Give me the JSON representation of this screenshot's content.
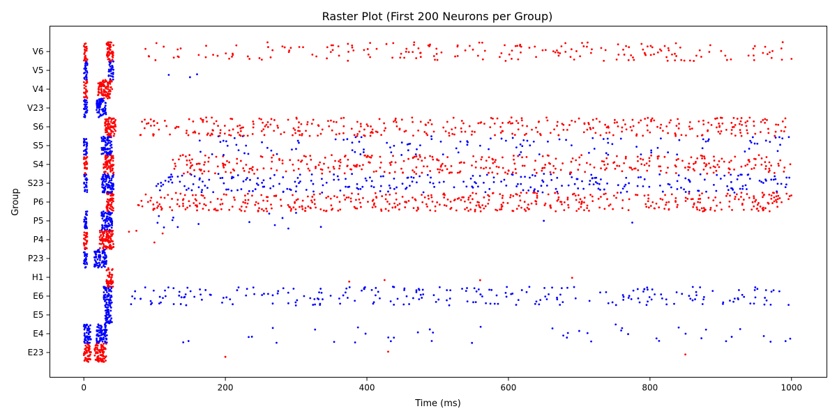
{
  "chart_data": {
    "type": "scatter",
    "title": "Raster Plot (First 200 Neurons per Group)",
    "xlabel": "Time (ms)",
    "ylabel": "Group",
    "xlim": [
      -48,
      1050
    ],
    "x_ticks": [
      0,
      200,
      400,
      600,
      800,
      1000
    ],
    "groups": [
      "E23",
      "E4",
      "E5",
      "E6",
      "H1",
      "P23",
      "P4",
      "P5",
      "P6",
      "S23",
      "S4",
      "S5",
      "S6",
      "V23",
      "V4",
      "V5",
      "V6"
    ],
    "grid": false,
    "legend": "none",
    "point_colors": {
      "red": "#ff0000",
      "blue": "#0000ff"
    },
    "series_summary": [
      {
        "group": "E23",
        "color": "red",
        "bursts": [
          [
            0,
            10
          ],
          [
            15,
            32
          ]
        ],
        "sustained": [
          [
            200,
            200
          ],
          [
            430,
            430
          ],
          [
            850,
            850
          ]
        ]
      },
      {
        "group": "E4",
        "color": "blue",
        "bursts": [
          [
            0,
            10
          ],
          [
            18,
            33
          ]
        ],
        "sustained": [
          [
            130,
            1000
          ]
        ]
      },
      {
        "group": "E5",
        "color": "blue",
        "bursts": [
          [
            30,
            40
          ]
        ],
        "sustained": []
      },
      {
        "group": "E6",
        "color": "blue",
        "bursts": [
          [
            28,
            40
          ]
        ],
        "sustained": [
          [
            65,
            1000
          ]
        ]
      },
      {
        "group": "H1",
        "color": "red",
        "bursts": [
          [
            32,
            42
          ]
        ],
        "sustained": [
          [
            375,
            375
          ],
          [
            425,
            425
          ],
          [
            560,
            560
          ],
          [
            690,
            690
          ]
        ]
      },
      {
        "group": "P23",
        "color": "blue",
        "bursts": [
          [
            0,
            5
          ],
          [
            15,
            32
          ]
        ],
        "sustained": []
      },
      {
        "group": "P4",
        "color": "red",
        "bursts": [
          [
            0,
            5
          ],
          [
            22,
            42
          ]
        ],
        "sustained": [
          [
            58,
            120
          ]
        ]
      },
      {
        "group": "P5",
        "color": "blue",
        "bursts": [
          [
            0,
            5
          ],
          [
            25,
            40
          ]
        ],
        "sustained": [
          [
            80,
            300
          ],
          [
            335,
            335
          ],
          [
            650,
            650
          ],
          [
            775,
            775
          ]
        ]
      },
      {
        "group": "P6",
        "color": "red",
        "bursts": [
          [
            32,
            42
          ]
        ],
        "sustained": [
          [
            75,
            1000
          ]
        ]
      },
      {
        "group": "S23",
        "color": "blue",
        "bursts": [
          [
            0,
            5
          ],
          [
            25,
            42
          ]
        ],
        "sustained": [
          [
            100,
            1000
          ]
        ]
      },
      {
        "group": "S4",
        "color": "red",
        "bursts": [
          [
            0,
            5
          ],
          [
            28,
            42
          ]
        ],
        "sustained": [
          [
            120,
            1000
          ]
        ]
      },
      {
        "group": "S5",
        "color": "blue",
        "bursts": [
          [
            0,
            5
          ],
          [
            25,
            40
          ]
        ],
        "sustained": [
          [
            160,
            1000
          ]
        ]
      },
      {
        "group": "S6",
        "color": "red",
        "bursts": [
          [
            30,
            45
          ]
        ],
        "sustained": [
          [
            72,
            1000
          ]
        ]
      },
      {
        "group": "V23",
        "color": "blue",
        "bursts": [
          [
            0,
            5
          ],
          [
            18,
            32
          ]
        ],
        "sustained": []
      },
      {
        "group": "V4",
        "color": "red",
        "bursts": [
          [
            0,
            5
          ],
          [
            20,
            40
          ]
        ],
        "sustained": []
      },
      {
        "group": "V5",
        "color": "blue",
        "bursts": [
          [
            0,
            5
          ],
          [
            35,
            42
          ]
        ],
        "sustained": [
          [
            120,
            120
          ],
          [
            150,
            150
          ],
          [
            160,
            160
          ]
        ]
      },
      {
        "group": "V6",
        "color": "red",
        "bursts": [
          [
            0,
            5
          ],
          [
            32,
            42
          ]
        ],
        "sustained": [
          [
            75,
            1000
          ]
        ]
      }
    ]
  }
}
